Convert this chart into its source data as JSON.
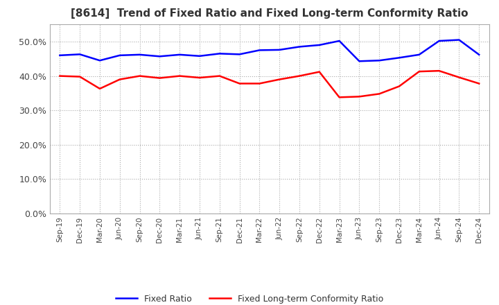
{
  "title": "[8614]  Trend of Fixed Ratio and Fixed Long-term Conformity Ratio",
  "x_labels": [
    "Sep-19",
    "Dec-19",
    "Mar-20",
    "Jun-20",
    "Sep-20",
    "Dec-20",
    "Mar-21",
    "Jun-21",
    "Sep-21",
    "Dec-21",
    "Mar-22",
    "Jun-22",
    "Sep-22",
    "Dec-22",
    "Mar-23",
    "Jun-23",
    "Sep-23",
    "Dec-23",
    "Mar-24",
    "Jun-24",
    "Sep-24",
    "Dec-24"
  ],
  "fixed_ratio": [
    0.46,
    0.463,
    0.445,
    0.46,
    0.462,
    0.457,
    0.462,
    0.458,
    0.465,
    0.463,
    0.475,
    0.476,
    0.485,
    0.49,
    0.502,
    0.443,
    0.445,
    0.453,
    0.462,
    0.502,
    0.505,
    0.462
  ],
  "fixed_lt_ratio": [
    0.4,
    0.398,
    0.363,
    0.39,
    0.4,
    0.394,
    0.4,
    0.395,
    0.4,
    0.378,
    0.378,
    0.39,
    0.4,
    0.412,
    0.338,
    0.34,
    0.348,
    0.37,
    0.413,
    0.415,
    0.396,
    0.378
  ],
  "fixed_ratio_color": "#0000ff",
  "fixed_lt_ratio_color": "#ff0000",
  "ylim": [
    0.0,
    0.55
  ],
  "yticks": [
    0.0,
    0.1,
    0.2,
    0.3,
    0.4,
    0.5
  ],
  "grid_color": "#aaaaaa",
  "background_color": "#ffffff",
  "legend_fixed": "Fixed Ratio",
  "legend_fixed_lt": "Fixed Long-term Conformity Ratio"
}
